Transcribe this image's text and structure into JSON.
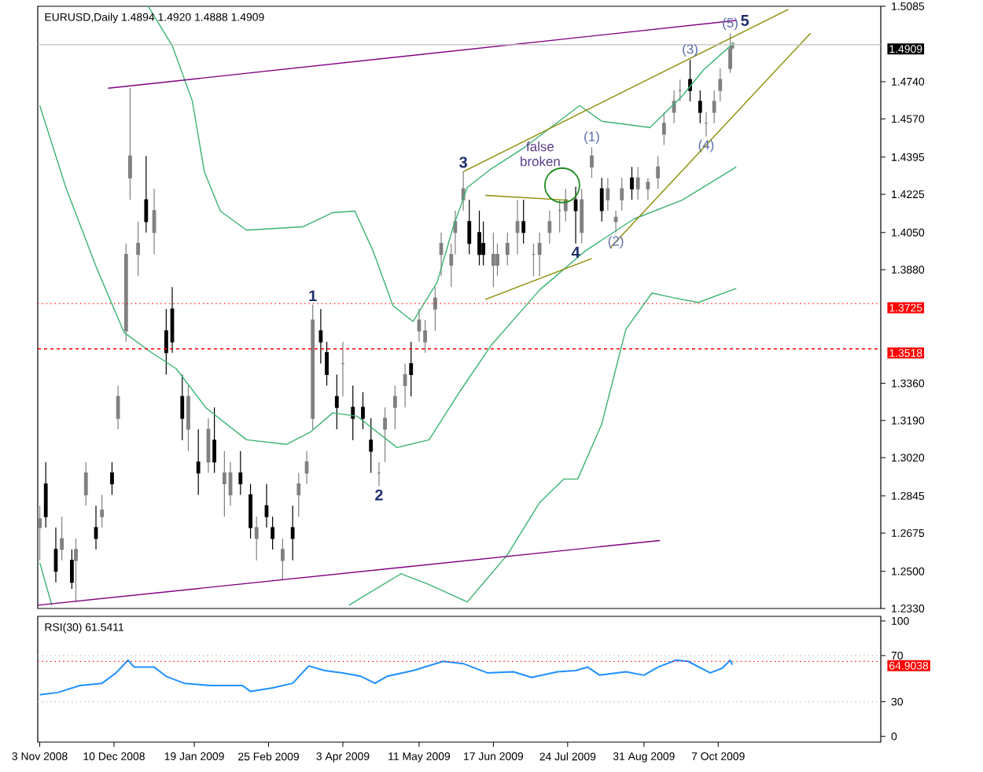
{
  "chart_data": [
    {
      "type": "candlestick",
      "title": "EURUSD,Daily  1.4894 1.4920 1.4888 1.4909",
      "x": [
        "2008-11-03",
        "2008-11-06",
        "2008-11-11",
        "2008-11-14",
        "2008-11-19",
        "2008-11-21",
        "2008-11-26",
        "2008-12-01",
        "2008-12-04",
        "2008-12-09",
        "2008-12-12",
        "2008-12-16",
        "2008-12-18",
        "2008-12-22",
        "2008-12-26",
        "2008-12-30",
        "2009-01-05",
        "2009-01-08",
        "2009-01-13",
        "2009-01-16",
        "2009-01-21",
        "2009-01-26",
        "2009-01-29",
        "2009-02-03",
        "2009-02-06",
        "2009-02-11",
        "2009-02-16",
        "2009-02-19",
        "2009-02-24",
        "2009-02-27",
        "2009-03-04",
        "2009-03-09",
        "2009-03-12",
        "2009-03-16",
        "2009-03-19",
        "2009-03-23",
        "2009-03-26",
        "2009-03-31",
        "2009-04-03",
        "2009-04-08",
        "2009-04-13",
        "2009-04-17",
        "2009-04-21",
        "2009-04-24",
        "2009-04-29",
        "2009-05-04",
        "2009-05-07",
        "2009-05-11",
        "2009-05-14",
        "2009-05-19",
        "2009-05-22",
        "2009-05-27",
        "2009-05-29",
        "2009-06-02",
        "2009-06-05",
        "2009-06-10",
        "2009-06-12",
        "2009-06-17",
        "2009-06-19",
        "2009-06-24",
        "2009-06-29",
        "2009-07-02",
        "2009-07-07",
        "2009-07-10",
        "2009-07-15",
        "2009-07-20",
        "2009-07-23",
        "2009-07-28",
        "2009-07-31",
        "2009-08-05",
        "2009-08-10",
        "2009-08-13",
        "2009-08-17",
        "2009-08-20",
        "2009-08-25",
        "2009-08-28",
        "2009-09-02",
        "2009-09-07",
        "2009-09-10",
        "2009-09-15",
        "2009-09-18",
        "2009-09-23",
        "2009-09-28",
        "2009-10-01",
        "2009-10-05",
        "2009-10-08",
        "2009-10-13",
        "2009-10-14"
      ],
      "ohlc": [
        [
          1.27,
          1.28,
          1.255,
          1.274
        ],
        [
          1.29,
          1.3,
          1.27,
          1.275
        ],
        [
          1.26,
          1.27,
          1.245,
          1.25
        ],
        [
          1.26,
          1.275,
          1.255,
          1.265
        ],
        [
          1.255,
          1.26,
          1.242,
          1.245
        ],
        [
          1.255,
          1.265,
          1.236,
          1.26
        ],
        [
          1.285,
          1.3,
          1.28,
          1.295
        ],
        [
          1.27,
          1.28,
          1.26,
          1.265
        ],
        [
          1.275,
          1.285,
          1.27,
          1.278
        ],
        [
          1.295,
          1.3,
          1.285,
          1.29
        ],
        [
          1.32,
          1.335,
          1.315,
          1.33
        ],
        [
          1.36,
          1.4,
          1.355,
          1.395
        ],
        [
          1.43,
          1.471,
          1.42,
          1.44
        ],
        [
          1.395,
          1.41,
          1.385,
          1.4
        ],
        [
          1.42,
          1.44,
          1.405,
          1.41
        ],
        [
          1.405,
          1.425,
          1.395,
          1.415
        ],
        [
          1.36,
          1.37,
          1.34,
          1.35
        ],
        [
          1.37,
          1.38,
          1.35,
          1.355
        ],
        [
          1.33,
          1.34,
          1.31,
          1.32
        ],
        [
          1.315,
          1.335,
          1.305,
          1.33
        ],
        [
          1.3,
          1.315,
          1.285,
          1.295
        ],
        [
          1.3,
          1.32,
          1.295,
          1.315
        ],
        [
          1.31,
          1.325,
          1.295,
          1.3
        ],
        [
          1.29,
          1.305,
          1.275,
          1.295
        ],
        [
          1.285,
          1.3,
          1.28,
          1.295
        ],
        [
          1.295,
          1.305,
          1.285,
          1.29
        ],
        [
          1.285,
          1.29,
          1.265,
          1.27
        ],
        [
          1.265,
          1.275,
          1.255,
          1.27
        ],
        [
          1.28,
          1.29,
          1.27,
          1.275
        ],
        [
          1.27,
          1.275,
          1.26,
          1.265
        ],
        [
          1.255,
          1.265,
          1.246,
          1.26
        ],
        [
          1.27,
          1.28,
          1.255,
          1.265
        ],
        [
          1.285,
          1.295,
          1.275,
          1.29
        ],
        [
          1.295,
          1.305,
          1.29,
          1.3
        ],
        [
          1.32,
          1.372,
          1.315,
          1.365
        ],
        [
          1.36,
          1.37,
          1.345,
          1.355
        ],
        [
          1.35,
          1.355,
          1.335,
          1.34
        ],
        [
          1.33,
          1.34,
          1.315,
          1.325
        ],
        [
          1.345,
          1.355,
          1.33,
          1.345
        ],
        [
          1.325,
          1.335,
          1.31,
          1.32
        ],
        [
          1.325,
          1.332,
          1.315,
          1.32
        ],
        [
          1.31,
          1.32,
          1.295,
          1.305
        ],
        [
          1.295,
          1.3,
          1.289,
          1.295
        ],
        [
          1.315,
          1.325,
          1.3,
          1.32
        ],
        [
          1.325,
          1.335,
          1.315,
          1.33
        ],
        [
          1.335,
          1.345,
          1.325,
          1.34
        ],
        [
          1.345,
          1.355,
          1.33,
          1.34
        ],
        [
          1.36,
          1.37,
          1.355,
          1.365
        ],
        [
          1.355,
          1.365,
          1.35,
          1.36
        ],
        [
          1.37,
          1.38,
          1.36,
          1.375
        ],
        [
          1.395,
          1.405,
          1.385,
          1.4
        ],
        [
          1.39,
          1.4,
          1.38,
          1.395
        ],
        [
          1.405,
          1.415,
          1.395,
          1.41
        ],
        [
          1.42,
          1.433,
          1.415,
          1.425
        ],
        [
          1.41,
          1.42,
          1.395,
          1.4
        ],
        [
          1.405,
          1.415,
          1.39,
          1.395
        ],
        [
          1.4,
          1.41,
          1.39,
          1.395
        ],
        [
          1.39,
          1.405,
          1.38,
          1.395
        ],
        [
          1.39,
          1.4,
          1.385,
          1.395
        ],
        [
          1.395,
          1.405,
          1.39,
          1.4
        ],
        [
          1.405,
          1.42,
          1.395,
          1.41
        ],
        [
          1.41,
          1.42,
          1.4,
          1.405
        ],
        [
          1.395,
          1.4,
          1.385,
          1.395
        ],
        [
          1.395,
          1.405,
          1.385,
          1.4
        ],
        [
          1.405,
          1.415,
          1.4,
          1.41
        ],
        [
          1.415,
          1.42,
          1.405,
          1.415
        ],
        [
          1.415,
          1.425,
          1.41,
          1.42
        ],
        [
          1.42,
          1.426,
          1.4,
          1.415
        ],
        [
          1.405,
          1.425,
          1.4,
          1.42
        ],
        [
          1.435,
          1.444,
          1.43,
          1.44
        ],
        [
          1.425,
          1.43,
          1.41,
          1.415
        ],
        [
          1.42,
          1.43,
          1.415,
          1.425
        ],
        [
          1.41,
          1.415,
          1.405,
          1.412
        ],
        [
          1.42,
          1.43,
          1.415,
          1.425
        ],
        [
          1.43,
          1.435,
          1.42,
          1.425
        ],
        [
          1.425,
          1.435,
          1.42,
          1.43
        ],
        [
          1.425,
          1.43,
          1.42,
          1.428
        ],
        [
          1.43,
          1.44,
          1.425,
          1.435
        ],
        [
          1.45,
          1.46,
          1.445,
          1.455
        ],
        [
          1.46,
          1.47,
          1.455,
          1.465
        ],
        [
          1.47,
          1.475,
          1.465,
          1.47
        ],
        [
          1.475,
          1.484,
          1.465,
          1.47
        ],
        [
          1.465,
          1.47,
          1.455,
          1.46
        ],
        [
          1.455,
          1.46,
          1.449,
          1.455
        ],
        [
          1.46,
          1.47,
          1.455,
          1.465
        ],
        [
          1.47,
          1.48,
          1.465,
          1.475
        ],
        [
          1.48,
          1.496,
          1.478,
          1.489
        ],
        [
          1.4894,
          1.492,
          1.4888,
          1.4909
        ]
      ],
      "series": [
        {
          "type": "line",
          "color": "#3cb371",
          "x": [
            "2008-12-27",
            "2009-01-08",
            "2009-01-18",
            "2009-01-24",
            "2009-02-01",
            "2009-02-14",
            "2009-03-14",
            "2009-03-29",
            "2009-04-09",
            "2009-04-18",
            "2009-04-28",
            "2009-05-08",
            "2009-05-20",
            "2009-05-28",
            "2009-06-04",
            "2009-06-16",
            "2009-07-02",
            "2009-07-30",
            "2009-08-10",
            "2009-09-03",
            "2009-09-19",
            "2009-09-30",
            "2009-10-15"
          ],
          "values": [
            1.5085,
            1.4905,
            1.4652,
            1.4328,
            1.4148,
            1.4061,
            1.4076,
            1.4141,
            1.4148,
            1.3967,
            1.3715,
            1.3643,
            1.3823,
            1.4076,
            1.4256,
            1.4342,
            1.4436,
            1.4631,
            1.4559,
            1.453,
            1.4674,
            1.4797,
            1.4919
          ]
        },
        {
          "type": "line",
          "color": "#3cb371",
          "x": [
            "2008-11-03",
            "2008-11-16",
            "2008-12-01",
            "2008-12-15",
            "2008-12-29",
            "2009-01-10",
            "2009-01-25",
            "2009-02-14",
            "2009-03-06",
            "2009-03-18",
            "2009-03-29",
            "2009-04-10",
            "2009-04-30",
            "2009-05-16",
            "2009-05-31",
            "2009-06-16",
            "2009-07-10",
            "2009-08-02",
            "2009-08-26",
            "2009-09-19",
            "2009-10-16"
          ],
          "values": [
            1.4631,
            1.4256,
            1.3895,
            1.3593,
            1.3499,
            1.3427,
            1.3246,
            1.3102,
            1.3081,
            1.3138,
            1.3225,
            1.321,
            1.3066,
            1.3102,
            1.3319,
            1.3535,
            1.3787,
            1.3967,
            1.4112,
            1.4198,
            1.435
          ]
        },
        {
          "type": "line",
          "color": "#3cb371",
          "x": [
            "2008-11-03",
            "2008-11-09",
            "2009-01-15",
            "2009-04-06",
            "2009-05-02",
            "2009-05-16",
            "2009-06-04",
            "2009-06-24",
            "2009-07-10",
            "2009-07-22",
            "2009-07-29",
            "2009-08-10",
            "2009-08-22",
            "2009-09-04",
            "2009-09-15",
            "2009-09-27",
            "2009-10-16"
          ],
          "values": [
            1.254,
            1.2345,
            null,
            1.2345,
            1.2489,
            1.2439,
            1.236,
            1.2576,
            1.2814,
            1.2922,
            1.2922,
            1.3174,
            1.3607,
            1.3773,
            1.3751,
            1.373,
            1.3794
          ]
        },
        {
          "type": "line",
          "color": "#800080",
          "x": [
            "2008-12-07",
            "2009-10-16"
          ],
          "values": [
            1.471,
            1.502
          ]
        },
        {
          "type": "line",
          "color": "#800080",
          "x": [
            "2008-11-02",
            "2009-09-08"
          ],
          "values": [
            1.2345,
            1.2641
          ]
        },
        {
          "type": "line",
          "color": "#8b8b00",
          "x": [
            "2009-06-02",
            "2009-11-11"
          ],
          "values": [
            1.4328,
            1.5071
          ]
        },
        {
          "type": "line",
          "color": "#8b8b00",
          "x": [
            "2009-08-14",
            "2009-11-22"
          ],
          "values": [
            1.3978,
            1.4962
          ]
        },
        {
          "type": "line",
          "color": "#8b8b00",
          "x": [
            "2009-06-13",
            "2009-08-05"
          ],
          "values": [
            1.3744,
            1.3931
          ]
        },
        {
          "type": "line",
          "color": "#8b8b00",
          "x": [
            "2009-06-13",
            "2009-07-24"
          ],
          "values": [
            1.422,
            1.4198
          ]
        }
      ],
      "xlim": [
        "2008-11-02",
        "2009-12-27"
      ],
      "ylim": [
        1.233,
        1.5085
      ],
      "yticks": [
        {
          "value": 1.233,
          "label": "1.2330"
        },
        {
          "value": 1.25,
          "label": "1.2500"
        },
        {
          "value": 1.2675,
          "label": "1.2675"
        },
        {
          "value": 1.2845,
          "label": "1.2845"
        },
        {
          "value": 1.302,
          "label": "1.3020"
        },
        {
          "value": 1.319,
          "label": "1.3190"
        },
        {
          "value": 1.336,
          "label": "1.3360"
        },
        {
          "value": 1.388,
          "label": "1.3880"
        },
        {
          "value": 1.405,
          "label": "1.4050"
        },
        {
          "value": 1.4225,
          "label": "1.4225"
        },
        {
          "value": 1.4395,
          "label": "1.4395"
        },
        {
          "value": 1.457,
          "label": "1.4570"
        },
        {
          "value": 1.474,
          "label": "1.4740"
        },
        {
          "value": 1.5085,
          "label": "1.5085"
        }
      ],
      "tick_labels": "y",
      "ref_lines": [
        {
          "axis": "y",
          "value": 1.3725,
          "label": "1.3725",
          "color": "#ff0000",
          "line_style": "dotted"
        },
        {
          "axis": "y",
          "value": 1.3518,
          "label": "1.3518",
          "color": "#ff0000",
          "line_style": "dashed"
        },
        {
          "axis": "y",
          "value": 1.4909,
          "label": "1.4909",
          "color": "#c0c0c0",
          "line_style": "solid"
        }
      ],
      "annotations": [
        {
          "text": "1",
          "x": "2009-03-19",
          "y": 1.372
        },
        {
          "text": "2",
          "x": "2009-04-21",
          "y": 1.289
        },
        {
          "text": "3",
          "x": "2009-06-02",
          "y": 1.433
        },
        {
          "text": "4",
          "x": "2009-07-28",
          "y": 1.4
        },
        {
          "text": "5",
          "x": "2009-10-16",
          "y": 1.502
        },
        {
          "text": "(1)",
          "x": "2009-08-05",
          "y": 1.444
        },
        {
          "text": "(2)",
          "x": "2009-08-17",
          "y": 1.405
        },
        {
          "text": "(3)",
          "x": "2009-09-23",
          "y": 1.484
        },
        {
          "text": "(4)",
          "x": "2009-10-01",
          "y": 1.449
        },
        {
          "text": "(5)",
          "x": "2009-10-13",
          "y": 1.496
        },
        "false broken"
      ]
    },
    {
      "type": "line",
      "title": "RSI(30) 61.5411",
      "color": "#1e90ff",
      "x": [
        "2008-11-03",
        "2008-11-12",
        "2008-11-23",
        "2008-12-04",
        "2008-12-11",
        "2008-12-17",
        "2008-12-20",
        "2008-12-30",
        "2009-01-05",
        "2009-01-14",
        "2009-01-27",
        "2009-02-12",
        "2009-02-16",
        "2009-02-27",
        "2009-03-09",
        "2009-03-17",
        "2009-03-25",
        "2009-04-03",
        "2009-04-12",
        "2009-04-19",
        "2009-04-25",
        "2009-05-08",
        "2009-05-23",
        "2009-06-02",
        "2009-06-14",
        "2009-06-27",
        "2009-07-06",
        "2009-07-19",
        "2009-07-28",
        "2009-08-03",
        "2009-08-09",
        "2009-08-22",
        "2009-08-31",
        "2009-09-07",
        "2009-09-16",
        "2009-09-22",
        "2009-10-03",
        "2009-10-09",
        "2009-10-13",
        "2009-10-14"
      ],
      "values": [
        36,
        38,
        44,
        46,
        55,
        66,
        60,
        60,
        52,
        46,
        44,
        44,
        39,
        42,
        46,
        61,
        57,
        55,
        52,
        46,
        52,
        57,
        65,
        63,
        55,
        56,
        51,
        56,
        57,
        60,
        53,
        56,
        53,
        60,
        66,
        65,
        55,
        59,
        66,
        62
      ],
      "xlim": [
        "2008-11-02",
        "2009-12-27"
      ],
      "ylim": [
        -5,
        104
      ],
      "yticks": [
        0,
        30,
        70,
        100
      ],
      "xticks": [
        {
          "value": "2008-11-03",
          "label": "3 Nov 2008"
        },
        {
          "value": "2008-12-10",
          "label": "10 Dec 2008"
        },
        {
          "value": "2009-01-19",
          "label": "19 Jan 2009"
        },
        {
          "value": "2009-02-25",
          "label": "25 Feb 2009"
        },
        {
          "value": "2009-04-03",
          "label": "3 Apr 2009"
        },
        {
          "value": "2009-05-11",
          "label": "11 May 2009"
        },
        {
          "value": "2009-06-17",
          "label": "17 Jun 2009"
        },
        {
          "value": "2009-07-24",
          "label": "24 Jul 2009"
        },
        {
          "value": "2009-08-31",
          "label": "31 Aug 2009"
        },
        {
          "value": "2009-10-07",
          "label": "7 Oct 2009"
        }
      ],
      "ref_lines": [
        {
          "axis": "y",
          "value": 70,
          "color": "#c0c0c0",
          "line_style": "dotted"
        },
        {
          "axis": "y",
          "value": 30,
          "color": "#c0c0c0",
          "line_style": "dotted"
        },
        {
          "axis": "y",
          "value": 64.9038,
          "label": "64.9038",
          "color": "#ff0000",
          "line_style": "dotted"
        }
      ]
    }
  ]
}
